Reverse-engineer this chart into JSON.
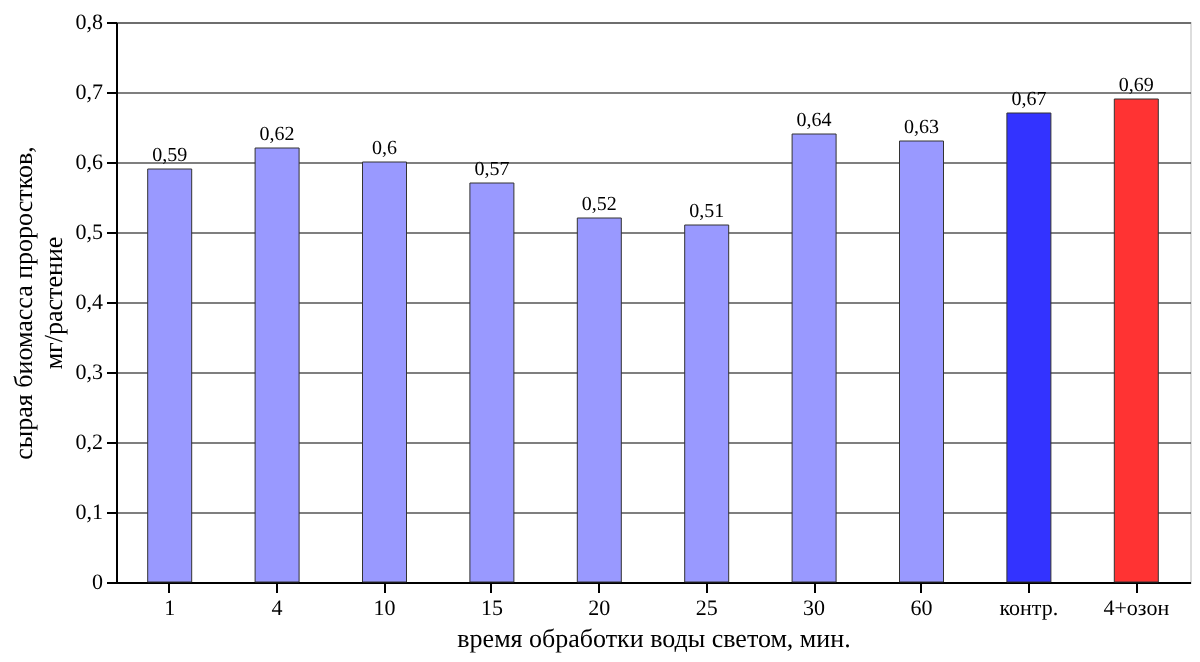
{
  "chart_data": {
    "type": "bar",
    "xlabel": "время обработки воды светом, мин.",
    "ylabel": "сырая биомасса проростков,\nмг/растение",
    "categories": [
      "1",
      "4",
      "10",
      "15",
      "20",
      "25",
      "30",
      "60",
      "контр.",
      "4+озон"
    ],
    "values": [
      0.59,
      0.62,
      0.6,
      0.57,
      0.52,
      0.51,
      0.64,
      0.63,
      0.67,
      0.69
    ],
    "colors": [
      "#9999ff",
      "#9999ff",
      "#9999ff",
      "#9999ff",
      "#9999ff",
      "#9999ff",
      "#9999ff",
      "#9999ff",
      "#3333ff",
      "#ff3333"
    ],
    "value_labels": [
      "0,59",
      "0,62",
      "0,6",
      "0,57",
      "0,52",
      "0,51",
      "0,64",
      "0,63",
      "0,67",
      "0,69"
    ],
    "ylim": [
      0,
      0.8
    ],
    "yticks": [
      0,
      {
        "value": 0.1,
        "label": "0,1"
      },
      {
        "value": 0.2,
        "label": "0,2"
      },
      {
        "value": 0.3,
        "label": "0,3"
      },
      {
        "value": 0.4,
        "label": "0,4"
      },
      {
        "value": 0.5,
        "label": "0,5"
      },
      {
        "value": 0.6,
        "label": "0,6"
      },
      {
        "value": 0.7,
        "label": "0,7"
      },
      {
        "value": 0.8,
        "label": "0,8"
      }
    ],
    "grid": "y"
  }
}
